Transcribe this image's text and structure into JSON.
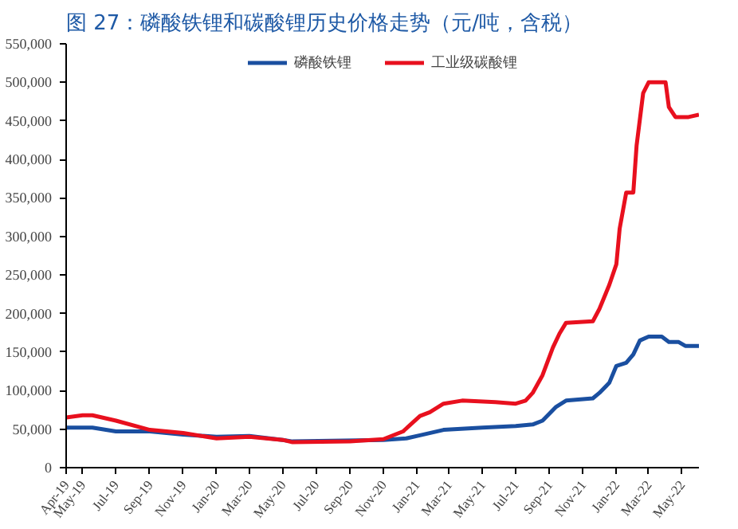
{
  "chart_data": {
    "type": "line",
    "title": "图 27：磷酸铁锂和碳酸锂历史价格走势（元/吨，含税）",
    "xlim": [
      "2019-04-01",
      "2022-06-01"
    ],
    "xticks": [
      {
        "value": "2019-04-01",
        "label": "Apr-19"
      },
      {
        "value": "2019-05-01",
        "label": "May-19"
      },
      {
        "value": "2019-07-01",
        "label": "Jul-19"
      },
      {
        "value": "2019-09-01",
        "label": "Sep-19"
      },
      {
        "value": "2019-11-01",
        "label": "Nov-19"
      },
      {
        "value": "2020-01-01",
        "label": "Jan-20"
      },
      {
        "value": "2020-03-01",
        "label": "Mar-20"
      },
      {
        "value": "2020-05-01",
        "label": "May-20"
      },
      {
        "value": "2020-07-01",
        "label": "Jul-20"
      },
      {
        "value": "2020-09-01",
        "label": "Sep-20"
      },
      {
        "value": "2020-11-01",
        "label": "Nov-20"
      },
      {
        "value": "2021-01-01",
        "label": "Jan-21"
      },
      {
        "value": "2021-03-01",
        "label": "Mar-21"
      },
      {
        "value": "2021-05-01",
        "label": "May-21"
      },
      {
        "value": "2021-07-01",
        "label": "Jul-21"
      },
      {
        "value": "2021-09-01",
        "label": "Sep-21"
      },
      {
        "value": "2021-11-01",
        "label": "Nov-21"
      },
      {
        "value": "2022-01-01",
        "label": "Jan-22"
      },
      {
        "value": "2022-03-01",
        "label": "Mar-22"
      },
      {
        "value": "2022-05-01",
        "label": "May-22"
      }
    ],
    "ylim": [
      0,
      550000
    ],
    "yticks": [
      0,
      {
        "value": 50000,
        "label": "50,000"
      },
      {
        "value": 100000,
        "label": "100,000"
      },
      {
        "value": 150000,
        "label": "150,000"
      },
      {
        "value": 200000,
        "label": "200,000"
      },
      {
        "value": 250000,
        "label": "250,000"
      },
      {
        "value": 300000,
        "label": "300,000"
      },
      {
        "value": 350000,
        "label": "350,000"
      },
      {
        "value": 400000,
        "label": "400,000"
      },
      {
        "value": 450000,
        "label": "450,000"
      },
      {
        "value": 500000,
        "label": "500,000"
      },
      {
        "value": 550000,
        "label": "550,000"
      }
    ],
    "grid": false,
    "legend": "top",
    "line_style": "solid",
    "marker": "none",
    "series": [
      {
        "name": "磷酸铁锂",
        "color": "#1a4fa0",
        "x": [
          "2019-04-01",
          "2019-05-19",
          "2019-07-01",
          "2019-09-01",
          "2019-11-01",
          "2020-01-01",
          "2020-03-01",
          "2020-05-01",
          "2020-05-19",
          "2020-11-01",
          "2020-12-13",
          "2021-01-07",
          "2021-02-19",
          "2021-05-01",
          "2021-07-01",
          "2021-08-01",
          "2021-08-19",
          "2021-09-13",
          "2021-10-01",
          "2021-11-19",
          "2021-12-01",
          "2021-12-19",
          "2022-01-01",
          "2022-01-19",
          "2022-02-01",
          "2022-02-13",
          "2022-03-01",
          "2022-03-25",
          "2022-04-07",
          "2022-04-25",
          "2022-05-07",
          "2022-06-01"
        ],
        "values": [
          52000,
          52000,
          47000,
          47000,
          43000,
          40000,
          41000,
          36000,
          34000,
          36000,
          38000,
          42000,
          49000,
          52000,
          54000,
          56000,
          61000,
          79000,
          87000,
          90000,
          97000,
          110000,
          132000,
          136000,
          147000,
          165000,
          170000,
          170000,
          163000,
          163000,
          158000,
          158000
        ]
      },
      {
        "name": "工业级碳酸锂",
        "color": "#e8101e",
        "x": [
          "2019-04-01",
          "2019-05-01",
          "2019-05-19",
          "2019-07-01",
          "2019-09-01",
          "2019-11-01",
          "2020-01-01",
          "2020-03-01",
          "2020-05-01",
          "2020-05-19",
          "2020-09-01",
          "2020-11-01",
          "2020-12-07",
          "2021-01-07",
          "2021-01-25",
          "2021-02-19",
          "2021-03-25",
          "2021-05-25",
          "2021-07-01",
          "2021-07-19",
          "2021-08-01",
          "2021-08-19",
          "2021-09-07",
          "2021-09-19",
          "2021-10-01",
          "2021-11-19",
          "2021-12-01",
          "2021-12-19",
          "2022-01-01",
          "2022-01-07",
          "2022-01-19",
          "2022-02-01",
          "2022-02-07",
          "2022-02-19",
          "2022-03-01",
          "2022-04-01",
          "2022-04-07",
          "2022-04-19",
          "2022-05-13",
          "2022-06-01"
        ],
        "values": [
          65000,
          68000,
          68000,
          61000,
          49000,
          45000,
          38000,
          40000,
          36000,
          33000,
          34000,
          37000,
          47000,
          67000,
          72000,
          83000,
          87000,
          85000,
          83000,
          87000,
          97000,
          120000,
          156000,
          174000,
          188000,
          190000,
          206000,
          237000,
          264000,
          310000,
          357000,
          357000,
          418000,
          486000,
          500000,
          500000,
          468000,
          455000,
          455000,
          458000
        ]
      }
    ]
  }
}
